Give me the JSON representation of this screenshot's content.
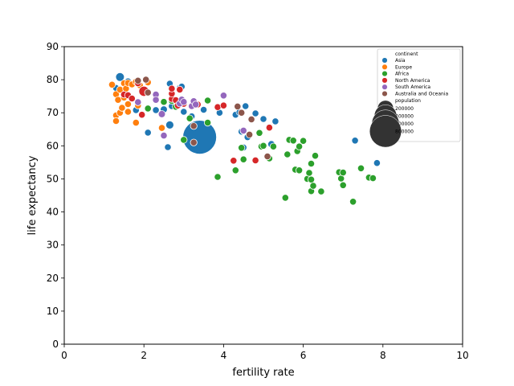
{
  "chart_data": {
    "type": "scatter",
    "title": "",
    "xlabel": "fertility rate",
    "ylabel": "life expectancy",
    "xlim": [
      0,
      10
    ],
    "ylim": [
      0,
      90
    ],
    "xticks": [
      0,
      2,
      4,
      6,
      8,
      10
    ],
    "yticks": [
      0,
      10,
      20,
      30,
      40,
      50,
      60,
      70,
      80,
      90
    ],
    "grid": false,
    "legend_position": "top-right",
    "legend": {
      "hue_title": "continent",
      "size_title": "population",
      "size_entries": [
        {
          "label": "200000",
          "value": 200000
        },
        {
          "label": "400000",
          "value": 400000
        },
        {
          "label": "600000",
          "value": 600000
        },
        {
          "label": "800000",
          "value": 800000
        }
      ]
    },
    "series": [
      {
        "name": "Asia",
        "color": "#1f77b4",
        "points": [
          [
            1.4,
            80.8,
            60000
          ],
          [
            1.3,
            77.5,
            5000
          ],
          [
            1.6,
            79.5,
            9000
          ],
          [
            1.8,
            70.8,
            20000
          ],
          [
            2.1,
            64.0,
            12000
          ],
          [
            2.3,
            70.8,
            9000
          ],
          [
            2.5,
            71.0,
            40000
          ],
          [
            2.6,
            59.6,
            8000
          ],
          [
            2.65,
            66.3,
            52000
          ],
          [
            2.7,
            72.0,
            30000
          ],
          [
            2.65,
            78.8,
            9000
          ],
          [
            2.9,
            77.5,
            10000
          ],
          [
            2.95,
            77.9,
            9000
          ],
          [
            3.0,
            70.3,
            12000
          ],
          [
            3.2,
            68.9,
            9000
          ],
          [
            3.3,
            65.5,
            14000
          ],
          [
            3.3,
            63.8,
            9000
          ],
          [
            3.35,
            64.5,
            10000
          ],
          [
            3.4,
            62.6,
            900000
          ],
          [
            3.5,
            70.9,
            9000
          ],
          [
            3.9,
            70.0,
            30000
          ],
          [
            4.3,
            69.4,
            9000
          ],
          [
            4.4,
            70.2,
            9000
          ],
          [
            4.45,
            64.3,
            9000
          ],
          [
            4.5,
            64.5,
            15000
          ],
          [
            4.5,
            59.5,
            9000
          ],
          [
            4.55,
            72.0,
            9000
          ],
          [
            4.6,
            62.6,
            14000
          ],
          [
            4.8,
            69.8,
            14000
          ],
          [
            5.0,
            68.1,
            9000
          ],
          [
            5.2,
            60.5,
            40000
          ],
          [
            5.3,
            67.4,
            10000
          ],
          [
            7.3,
            61.6,
            9000
          ],
          [
            7.85,
            54.8,
            9000
          ]
        ]
      },
      {
        "name": "Europe",
        "color": "#ff7f0e",
        "points": [
          [
            1.2,
            78.5,
            8000
          ],
          [
            1.3,
            75.6,
            8000
          ],
          [
            1.3,
            69.2,
            8000
          ],
          [
            1.3,
            67.5,
            12000
          ],
          [
            1.35,
            73.9,
            8000
          ],
          [
            1.4,
            77.0,
            9000
          ],
          [
            1.4,
            70.0,
            9000
          ],
          [
            1.45,
            71.5,
            8000
          ],
          [
            1.5,
            78.9,
            9000
          ],
          [
            1.5,
            74.6,
            9000
          ],
          [
            1.55,
            77.3,
            12000
          ],
          [
            1.6,
            70.3,
            8000
          ],
          [
            1.6,
            72.6,
            15000
          ],
          [
            1.6,
            79.0,
            10000
          ],
          [
            1.7,
            78.6,
            12000
          ],
          [
            1.8,
            79.4,
            14000
          ],
          [
            1.85,
            72.2,
            9000
          ],
          [
            1.9,
            78.3,
            9000
          ],
          [
            2.0,
            76.5,
            10000
          ],
          [
            1.8,
            67.0,
            8000
          ],
          [
            2.1,
            79.2,
            8000
          ],
          [
            2.45,
            65.4,
            8000
          ]
        ]
      },
      {
        "name": "Africa",
        "color": "#2ca02c",
        "points": [
          [
            2.1,
            71.3,
            8000
          ],
          [
            2.5,
            73.3,
            10000
          ],
          [
            2.7,
            73.6,
            8000
          ],
          [
            2.8,
            71.8,
            9000
          ],
          [
            3.0,
            61.8,
            14000
          ],
          [
            3.15,
            68.3,
            10000
          ],
          [
            3.6,
            73.7,
            9000
          ],
          [
            3.6,
            67.0,
            15000
          ],
          [
            3.85,
            50.6,
            8000
          ],
          [
            4.3,
            52.6,
            9000
          ],
          [
            4.45,
            59.4,
            9000
          ],
          [
            4.5,
            55.9,
            9000
          ],
          [
            4.9,
            63.9,
            9000
          ],
          [
            4.95,
            59.8,
            9000
          ],
          [
            5.0,
            60.0,
            9000
          ],
          [
            5.1,
            56.8,
            9000
          ],
          [
            5.15,
            56.2,
            9000
          ],
          [
            5.25,
            59.8,
            9000
          ],
          [
            5.55,
            44.3,
            9000
          ],
          [
            5.6,
            57.4,
            9000
          ],
          [
            5.65,
            61.8,
            9000
          ],
          [
            5.75,
            61.6,
            9000
          ],
          [
            5.8,
            52.8,
            9000
          ],
          [
            5.85,
            58.4,
            9000
          ],
          [
            5.9,
            52.6,
            9000
          ],
          [
            5.9,
            59.8,
            9000
          ],
          [
            6.0,
            61.5,
            9000
          ],
          [
            6.1,
            50.0,
            9000
          ],
          [
            6.15,
            51.8,
            9000
          ],
          [
            6.2,
            46.3,
            9000
          ],
          [
            6.2,
            49.8,
            9000
          ],
          [
            6.2,
            54.6,
            26000
          ],
          [
            6.25,
            47.9,
            9000
          ],
          [
            6.3,
            57.0,
            9000
          ],
          [
            6.45,
            46.2,
            9000
          ],
          [
            6.9,
            52.0,
            9000
          ],
          [
            6.95,
            50.1,
            9000
          ],
          [
            7.0,
            48.1,
            9000
          ],
          [
            7.0,
            51.9,
            9000
          ],
          [
            7.25,
            43.1,
            9000
          ],
          [
            7.45,
            53.2,
            9000
          ],
          [
            7.65,
            50.4,
            9000
          ],
          [
            7.75,
            50.2,
            9000
          ]
        ]
      },
      {
        "name": "North America",
        "color": "#d62728",
        "points": [
          [
            1.5,
            75.5,
            9000
          ],
          [
            1.6,
            75.3,
            9000
          ],
          [
            1.7,
            74.3,
            8000
          ],
          [
            1.85,
            78.9,
            9000
          ],
          [
            1.95,
            69.4,
            12000
          ],
          [
            2.0,
            76.5,
            80000
          ],
          [
            2.3,
            74.3,
            9000
          ],
          [
            2.7,
            74.2,
            9000
          ],
          [
            2.7,
            75.8,
            9000
          ],
          [
            2.7,
            77.3,
            9000
          ],
          [
            2.8,
            73.8,
            12000
          ],
          [
            2.85,
            72.2,
            9000
          ],
          [
            2.9,
            77.0,
            9000
          ],
          [
            3.0,
            72.7,
            12000
          ],
          [
            3.35,
            72.5,
            9000
          ],
          [
            3.85,
            71.7,
            10000
          ],
          [
            4.0,
            72.2,
            9000
          ],
          [
            4.25,
            55.5,
            9000
          ],
          [
            4.8,
            55.6,
            9000
          ],
          [
            5.15,
            65.5,
            9000
          ]
        ]
      },
      {
        "name": "South America",
        "color": "#9467bd",
        "points": [
          [
            1.85,
            73.2,
            9000
          ],
          [
            2.3,
            75.5,
            9000
          ],
          [
            2.3,
            73.9,
            9000
          ],
          [
            2.45,
            69.6,
            40000
          ],
          [
            2.5,
            63.1,
            9000
          ],
          [
            2.9,
            72.8,
            10000
          ],
          [
            2.95,
            74.0,
            9000
          ],
          [
            3.0,
            73.3,
            12000
          ],
          [
            3.2,
            72.0,
            12000
          ],
          [
            3.25,
            73.5,
            12000
          ],
          [
            3.3,
            72.5,
            9000
          ],
          [
            4.0,
            75.2,
            9000
          ],
          [
            4.5,
            64.6,
            9000
          ]
        ]
      },
      {
        "name": "Australia and Oceania",
        "color": "#8c564b",
        "points": [
          [
            1.85,
            79.7,
            9000
          ],
          [
            2.05,
            80.0,
            9000
          ],
          [
            2.1,
            76.1,
            9000
          ],
          [
            3.25,
            61.0,
            9000
          ],
          [
            3.25,
            66.0,
            9000
          ],
          [
            4.35,
            71.9,
            9000
          ],
          [
            4.45,
            70.0,
            9000
          ],
          [
            4.7,
            68.0,
            9000
          ],
          [
            4.65,
            63.4,
            9000
          ],
          [
            5.1,
            56.8,
            9000
          ]
        ]
      }
    ]
  }
}
